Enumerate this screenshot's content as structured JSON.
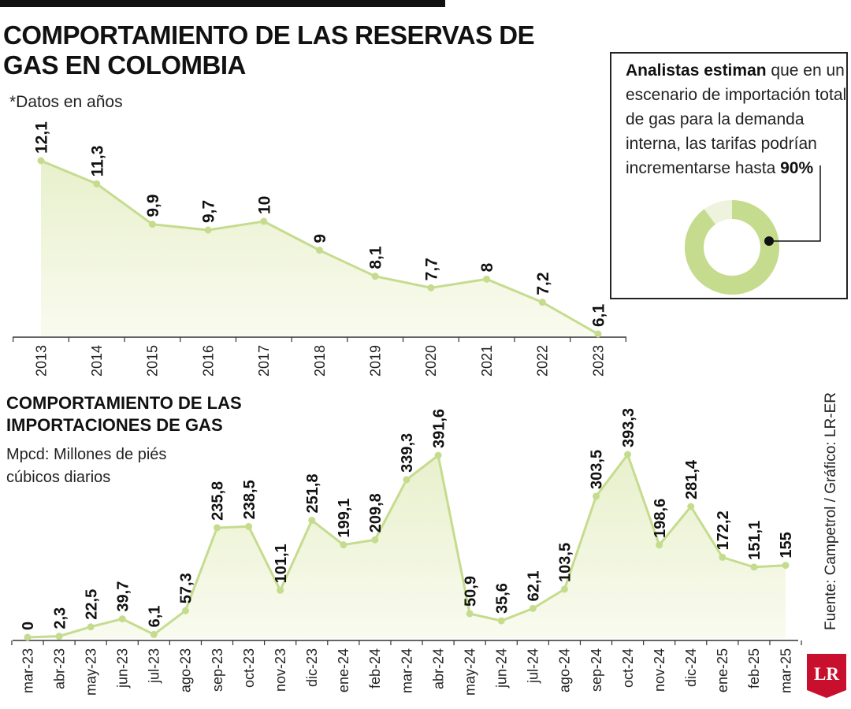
{
  "header": {
    "title": "COMPORTAMIENTO DE LAS RESERVAS DE GAS EN COLOMBIA",
    "subtitle": "*Datos en años"
  },
  "callout": {
    "bold_lead": "Analistas estiman",
    "text": " que en un escenario de importación total de gas para la demanda interna, las tarifas podrían incrementarse hasta ",
    "highlight": "90%",
    "percent": 90
  },
  "imports_section": {
    "title": "COMPORTAMIENTO DE LAS IMPORTACIONES DE GAS",
    "unit": "Mpcd: Millones de piés cúbicos diarios"
  },
  "footer": {
    "source": "Fuente: Campetrol / Gráfico: LR-ER",
    "logo": "LR"
  },
  "colors": {
    "line": "#c5dc8e",
    "area_top": "#e8f0cc",
    "area_bottom": "#f9fbef",
    "donut_fill": "#c5dc8e",
    "donut_rest": "#edf3dc",
    "logo_red": "#c8102e",
    "text": "#111111"
  },
  "chart_data": [
    {
      "type": "area",
      "categories": [
        "2013",
        "2014",
        "2015",
        "2016",
        "2017",
        "2018",
        "2019",
        "2020",
        "2021",
        "2022",
        "2023"
      ],
      "values": [
        12.1,
        11.3,
        9.9,
        9.7,
        10,
        9,
        8.1,
        7.7,
        8,
        7.2,
        6.1
      ],
      "labels": [
        "12,1",
        "11,3",
        "9,9",
        "9,7",
        "10",
        "9",
        "8,1",
        "7,7",
        "8",
        "7,2",
        "6,1"
      ],
      "ylim": [
        6.1,
        12.1
      ],
      "grid": false,
      "legend": "none"
    },
    {
      "type": "area",
      "categories": [
        "mar-23",
        "abr-23",
        "may-23",
        "jun-23",
        "jul-23",
        "ago-23",
        "sep-23",
        "oct-23",
        "nov-23",
        "dic-23",
        "ene-24",
        "feb-24",
        "mar-24",
        "abr-24",
        "may-24",
        "jun-24",
        "jul-24",
        "ago-24",
        "sep-24",
        "oct-24",
        "nov-24",
        "dic-24",
        "ene-25",
        "feb-25",
        "mar-25"
      ],
      "values": [
        0,
        2.3,
        22.5,
        39.7,
        6.1,
        57.3,
        235.8,
        238.5,
        101.1,
        251.8,
        199.1,
        209.8,
        339.3,
        391.6,
        50.9,
        35.6,
        62.1,
        103.5,
        303.5,
        393.3,
        198.6,
        281.4,
        172.2,
        151.1,
        155
      ],
      "labels": [
        "0",
        "2,3",
        "22,5",
        "39,7",
        "6,1",
        "57,3",
        "235,8",
        "238,5",
        "101,1",
        "251,8",
        "199,1",
        "209,8",
        "339,3",
        "391,6",
        "50,9",
        "35,6",
        "62,1",
        "103,5",
        "303,5",
        "393,3",
        "198,6",
        "281,4",
        "172,2",
        "151,1",
        "155"
      ],
      "ylim": [
        0,
        393.3
      ],
      "grid": false,
      "legend": "none"
    }
  ]
}
